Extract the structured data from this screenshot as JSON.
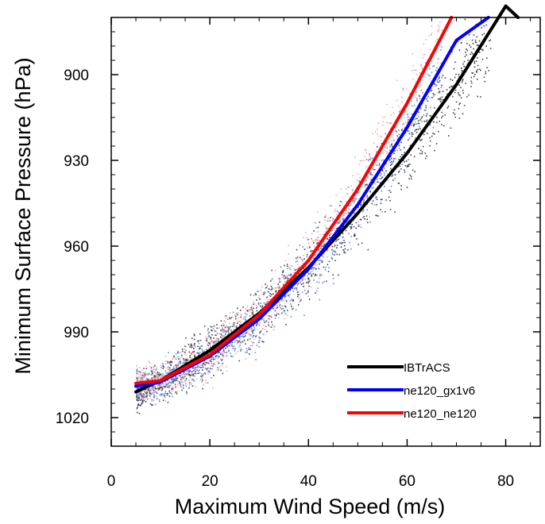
{
  "chart_data": {
    "type": "scatter",
    "title": "",
    "xlabel": "Maximum Wind Speed (m/s)",
    "ylabel": "Minimum Surface Pressure (hPa)",
    "xlim": [
      0,
      87
    ],
    "ylim": [
      1030,
      880
    ],
    "y_inverted": true,
    "x_ticks": [
      0,
      20,
      40,
      60,
      80
    ],
    "x_tick_labels": [
      "0",
      "20",
      "40",
      "60",
      "80"
    ],
    "y_ticks": [
      900,
      930,
      960,
      990,
      1020
    ],
    "y_tick_labels": [
      "900",
      "930",
      "960",
      "990",
      "1020"
    ],
    "grid": false,
    "legend_position": "bottom-right",
    "series": [
      {
        "name": "IBTrACS",
        "color": "#000000",
        "scatter_color": "#444444",
        "fit_x": [
          5,
          10,
          20,
          30,
          40,
          50,
          60,
          70,
          80,
          82.5
        ],
        "fit_y": [
          1011,
          1007,
          996.5,
          983.5,
          967.5,
          948.5,
          927.5,
          903.5,
          876,
          880
        ]
      },
      {
        "name": "ne120_gx1v6",
        "color": "#0000ff",
        "scatter_color": "#5c8cf0",
        "fit_x": [
          5,
          10,
          20,
          30,
          40,
          50,
          60,
          70,
          76.5
        ],
        "fit_y": [
          1009,
          1007.5,
          998.5,
          985.5,
          968,
          945.5,
          918.5,
          888,
          880
        ]
      },
      {
        "name": "ne120_ne120",
        "color": "#ff0000",
        "scatter_color": "#f7a6a6",
        "fit_x": [
          5,
          10,
          20,
          30,
          40,
          50,
          60,
          69
        ],
        "fit_y": [
          1008,
          1007,
          998,
          984,
          965,
          940,
          910,
          880
        ]
      }
    ]
  }
}
